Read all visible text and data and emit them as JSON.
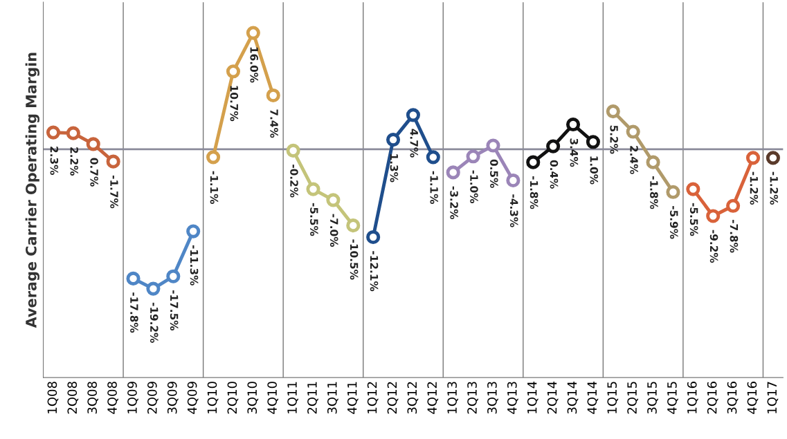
{
  "chart_data": {
    "type": "line",
    "ylabel": "Average Carrier Operating Margin",
    "categories": [
      "1Q08",
      "2Q08",
      "3Q08",
      "4Q08",
      "1Q09",
      "2Q09",
      "3Q09",
      "4Q09",
      "1Q10",
      "2Q10",
      "3Q10",
      "4Q10",
      "1Q11",
      "2Q11",
      "3Q11",
      "4Q11",
      "1Q12",
      "2Q12",
      "3Q12",
      "4Q12",
      "1Q13",
      "2Q13",
      "3Q13",
      "4Q13",
      "1Q14",
      "2Q14",
      "3Q14",
      "4Q14",
      "1Q15",
      "2Q15",
      "3Q15",
      "4Q15",
      "1Q16",
      "2Q16",
      "3Q16",
      "4Q16",
      "1Q17"
    ],
    "series": [
      {
        "color": "#c8643c",
        "value_labels": [
          "2.3%",
          "2.2%",
          "0.7%",
          "-1.7%",
          null,
          null,
          null,
          null,
          null,
          null,
          null,
          null,
          null,
          null,
          null,
          null,
          null,
          null,
          null,
          null,
          null,
          null,
          null,
          null,
          null,
          null,
          null,
          null,
          null,
          null,
          null,
          null,
          null,
          null,
          null,
          null,
          null
        ],
        "values": [
          2.3,
          2.2,
          0.7,
          -1.7,
          null,
          null,
          null,
          null,
          null,
          null,
          null,
          null,
          null,
          null,
          null,
          null,
          null,
          null,
          null,
          null,
          null,
          null,
          null,
          null,
          null,
          null,
          null,
          null,
          null,
          null,
          null,
          null,
          null,
          null,
          null,
          null,
          null
        ]
      },
      {
        "color": "#4f86c6",
        "value_labels": [
          null,
          null,
          null,
          null,
          "-17.8%",
          "-19.2%",
          "-17.5%",
          "-11.3%",
          null,
          null,
          null,
          null,
          null,
          null,
          null,
          null,
          null,
          null,
          null,
          null,
          null,
          null,
          null,
          null,
          null,
          null,
          null,
          null,
          null,
          null,
          null,
          null,
          null,
          null,
          null,
          null,
          null
        ],
        "values": [
          null,
          null,
          null,
          null,
          -17.8,
          -19.2,
          -17.5,
          -11.3,
          null,
          null,
          null,
          null,
          null,
          null,
          null,
          null,
          null,
          null,
          null,
          null,
          null,
          null,
          null,
          null,
          null,
          null,
          null,
          null,
          null,
          null,
          null,
          null,
          null,
          null,
          null,
          null,
          null
        ]
      },
      {
        "color": "#d4a04c",
        "value_labels": [
          null,
          null,
          null,
          null,
          null,
          null,
          null,
          null,
          "-1.1%",
          "10.7%",
          "16.0%",
          "7.4%",
          null,
          null,
          null,
          null,
          null,
          null,
          null,
          null,
          null,
          null,
          null,
          null,
          null,
          null,
          null,
          null,
          null,
          null,
          null,
          null,
          null,
          null,
          null,
          null,
          null
        ],
        "values": [
          null,
          null,
          null,
          null,
          null,
          null,
          null,
          null,
          -1.1,
          10.7,
          16.0,
          7.4,
          null,
          null,
          null,
          null,
          null,
          null,
          null,
          null,
          null,
          null,
          null,
          null,
          null,
          null,
          null,
          null,
          null,
          null,
          null,
          null,
          null,
          null,
          null,
          null,
          null
        ]
      },
      {
        "color": "#c4c47a",
        "value_labels": [
          null,
          null,
          null,
          null,
          null,
          null,
          null,
          null,
          null,
          null,
          null,
          null,
          "-0.2%",
          "-5.5%",
          "-7.0%",
          "-10.5%",
          null,
          null,
          null,
          null,
          null,
          null,
          null,
          null,
          null,
          null,
          null,
          null,
          null,
          null,
          null,
          null,
          null,
          null,
          null,
          null,
          null
        ],
        "values": [
          null,
          null,
          null,
          null,
          null,
          null,
          null,
          null,
          null,
          null,
          null,
          null,
          -0.2,
          -5.5,
          -7.0,
          -10.5,
          null,
          null,
          null,
          null,
          null,
          null,
          null,
          null,
          null,
          null,
          null,
          null,
          null,
          null,
          null,
          null,
          null,
          null,
          null,
          null,
          null
        ]
      },
      {
        "color": "#1f4e8c",
        "value_labels": [
          null,
          null,
          null,
          null,
          null,
          null,
          null,
          null,
          null,
          null,
          null,
          null,
          null,
          null,
          null,
          null,
          "-12.1%",
          "1.3%",
          "4.7%",
          "-1.1%",
          null,
          null,
          null,
          null,
          null,
          null,
          null,
          null,
          null,
          null,
          null,
          null,
          null,
          null,
          null,
          null,
          null
        ],
        "values": [
          null,
          null,
          null,
          null,
          null,
          null,
          null,
          null,
          null,
          null,
          null,
          null,
          null,
          null,
          null,
          null,
          -12.1,
          1.3,
          4.7,
          -1.1,
          null,
          null,
          null,
          null,
          null,
          null,
          null,
          null,
          null,
          null,
          null,
          null,
          null,
          null,
          null,
          null,
          null
        ]
      },
      {
        "color": "#9b85b8",
        "value_labels": [
          null,
          null,
          null,
          null,
          null,
          null,
          null,
          null,
          null,
          null,
          null,
          null,
          null,
          null,
          null,
          null,
          null,
          null,
          null,
          null,
          "-3.2%",
          "-1.0%",
          "0.5%",
          "-4.3%",
          null,
          null,
          null,
          null,
          null,
          null,
          null,
          null,
          null,
          null,
          null,
          null,
          null
        ],
        "values": [
          null,
          null,
          null,
          null,
          null,
          null,
          null,
          null,
          null,
          null,
          null,
          null,
          null,
          null,
          null,
          null,
          null,
          null,
          null,
          null,
          -3.2,
          -1.0,
          0.5,
          -4.3,
          null,
          null,
          null,
          null,
          null,
          null,
          null,
          null,
          null,
          null,
          null,
          null,
          null
        ]
      },
      {
        "color": "#111111",
        "value_labels": [
          null,
          null,
          null,
          null,
          null,
          null,
          null,
          null,
          null,
          null,
          null,
          null,
          null,
          null,
          null,
          null,
          null,
          null,
          null,
          null,
          null,
          null,
          null,
          null,
          "-1.8%",
          "0.4%",
          "3.4%",
          "1.0%",
          null,
          null,
          null,
          null,
          null,
          null,
          null,
          null,
          null
        ],
        "values": [
          null,
          null,
          null,
          null,
          null,
          null,
          null,
          null,
          null,
          null,
          null,
          null,
          null,
          null,
          null,
          null,
          null,
          null,
          null,
          null,
          null,
          null,
          null,
          null,
          -1.8,
          0.4,
          3.4,
          1.0,
          null,
          null,
          null,
          null,
          null,
          null,
          null,
          null,
          null
        ]
      },
      {
        "color": "#b09a6a",
        "value_labels": [
          null,
          null,
          null,
          null,
          null,
          null,
          null,
          null,
          null,
          null,
          null,
          null,
          null,
          null,
          null,
          null,
          null,
          null,
          null,
          null,
          null,
          null,
          null,
          null,
          null,
          null,
          null,
          null,
          "5.2%",
          "2.4%",
          "-1.8%",
          "-5.9%",
          null,
          null,
          null,
          null,
          null
        ],
        "values": [
          null,
          null,
          null,
          null,
          null,
          null,
          null,
          null,
          null,
          null,
          null,
          null,
          null,
          null,
          null,
          null,
          null,
          null,
          null,
          null,
          null,
          null,
          null,
          null,
          null,
          null,
          null,
          null,
          5.2,
          2.4,
          -1.8,
          -5.9,
          null,
          null,
          null,
          null,
          null
        ]
      },
      {
        "color": "#d9623a",
        "value_labels": [
          null,
          null,
          null,
          null,
          null,
          null,
          null,
          null,
          null,
          null,
          null,
          null,
          null,
          null,
          null,
          null,
          null,
          null,
          null,
          null,
          null,
          null,
          null,
          null,
          null,
          null,
          null,
          null,
          null,
          null,
          null,
          null,
          "-5.5%",
          "-9.2%",
          "-7.8%",
          "-1.2%",
          null
        ],
        "values": [
          null,
          null,
          null,
          null,
          null,
          null,
          null,
          null,
          null,
          null,
          null,
          null,
          null,
          null,
          null,
          null,
          null,
          null,
          null,
          null,
          null,
          null,
          null,
          null,
          null,
          null,
          null,
          null,
          null,
          null,
          null,
          null,
          -5.5,
          -9.2,
          -7.8,
          -1.2,
          null
        ]
      },
      {
        "color": "#5a3a2a",
        "value_labels": [
          null,
          null,
          null,
          null,
          null,
          null,
          null,
          null,
          null,
          null,
          null,
          null,
          null,
          null,
          null,
          null,
          null,
          null,
          null,
          null,
          null,
          null,
          null,
          null,
          null,
          null,
          null,
          null,
          null,
          null,
          null,
          null,
          null,
          null,
          null,
          null,
          "-1.2%"
        ],
        "values": [
          null,
          null,
          null,
          null,
          null,
          null,
          null,
          null,
          null,
          null,
          null,
          null,
          null,
          null,
          null,
          null,
          null,
          null,
          null,
          null,
          null,
          null,
          null,
          null,
          null,
          null,
          null,
          null,
          null,
          null,
          null,
          null,
          null,
          null,
          null,
          null,
          -1.2
        ]
      }
    ],
    "marker": "circle",
    "line_style": "solid",
    "legend": false,
    "tick_labels": "x"
  }
}
